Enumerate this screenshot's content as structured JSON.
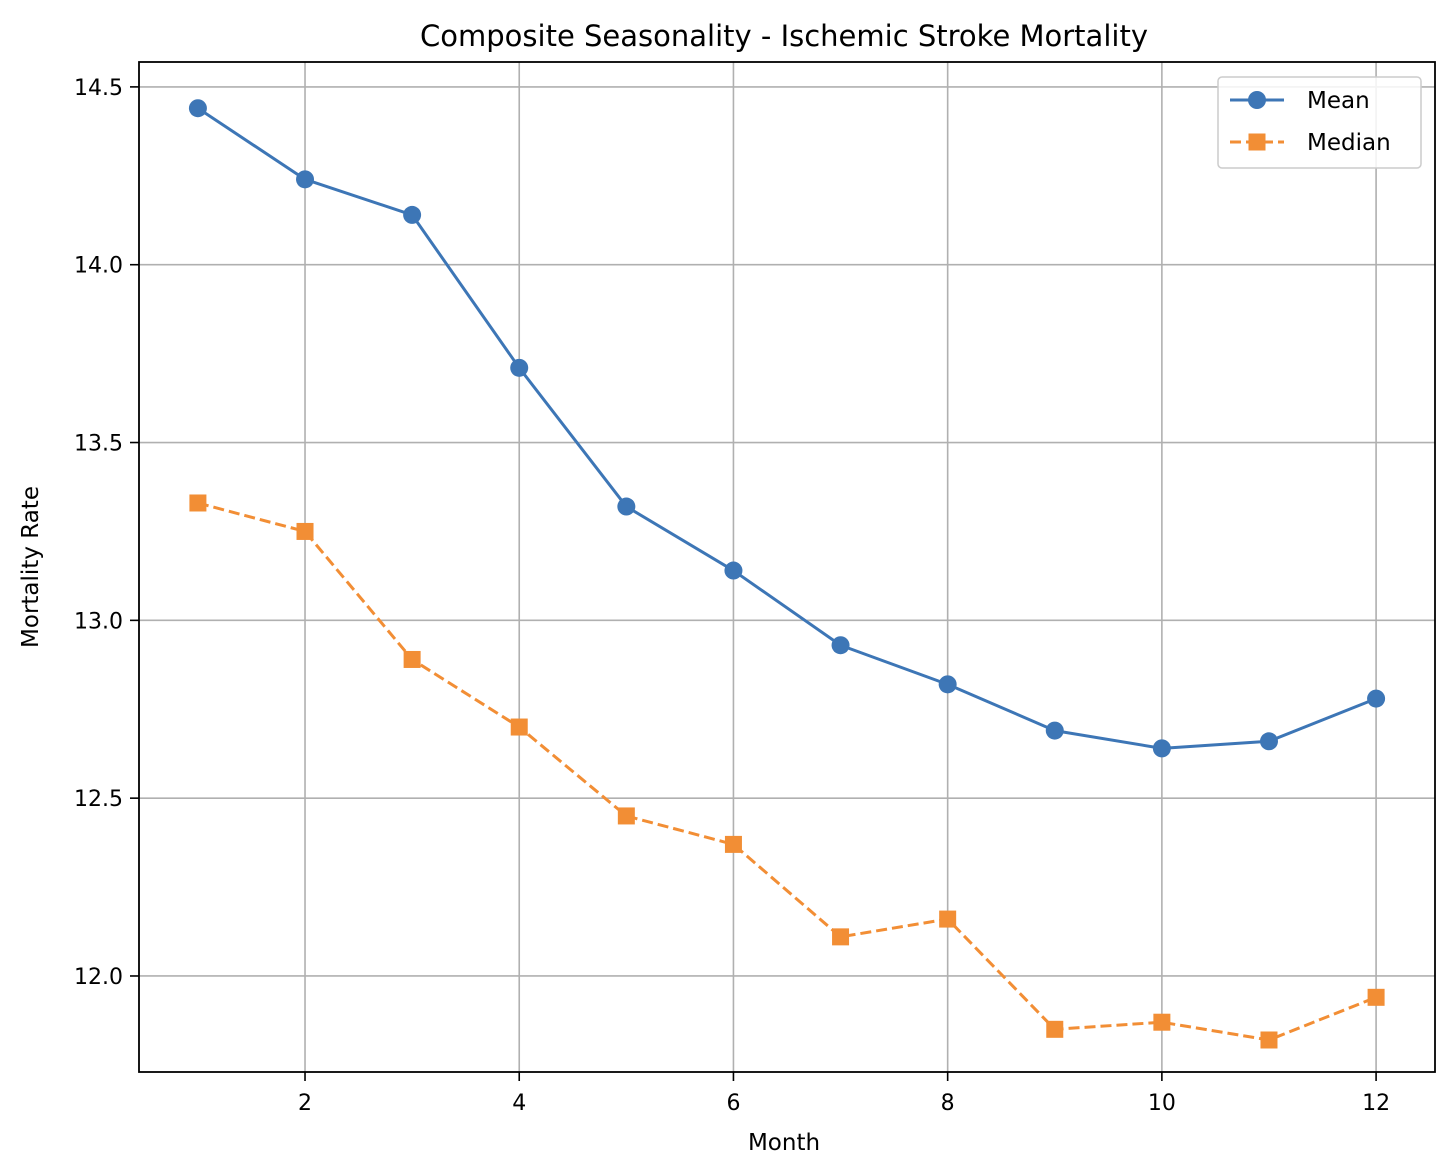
{
  "chart_data": {
    "type": "line",
    "title": "Composite Seasonality - Ischemic Stroke Mortality",
    "xlabel": "Month",
    "ylabel": "Mortality Rate",
    "x": [
      1,
      2,
      3,
      4,
      5,
      6,
      7,
      8,
      9,
      10,
      11,
      12
    ],
    "xticks": [
      2,
      4,
      6,
      8,
      10,
      12
    ],
    "yticks": [
      12.0,
      12.5,
      13.0,
      13.5,
      14.0,
      14.5
    ],
    "xlim": [
      0.45,
      12.55
    ],
    "ylim": [
      11.73,
      14.57
    ],
    "grid": true,
    "legend_position": "top-right",
    "series": [
      {
        "name": "Mean",
        "color": "#3d76b6",
        "marker": "circle",
        "linestyle": "solid",
        "values": [
          14.44,
          14.24,
          14.14,
          13.71,
          13.32,
          13.14,
          12.93,
          12.82,
          12.69,
          12.64,
          12.66,
          12.78
        ]
      },
      {
        "name": "Median",
        "color": "#f28e35",
        "marker": "square",
        "linestyle": "dashed",
        "values": [
          13.33,
          13.25,
          12.89,
          12.7,
          12.45,
          12.37,
          12.11,
          12.16,
          11.85,
          11.87,
          11.82,
          11.94
        ]
      }
    ]
  }
}
